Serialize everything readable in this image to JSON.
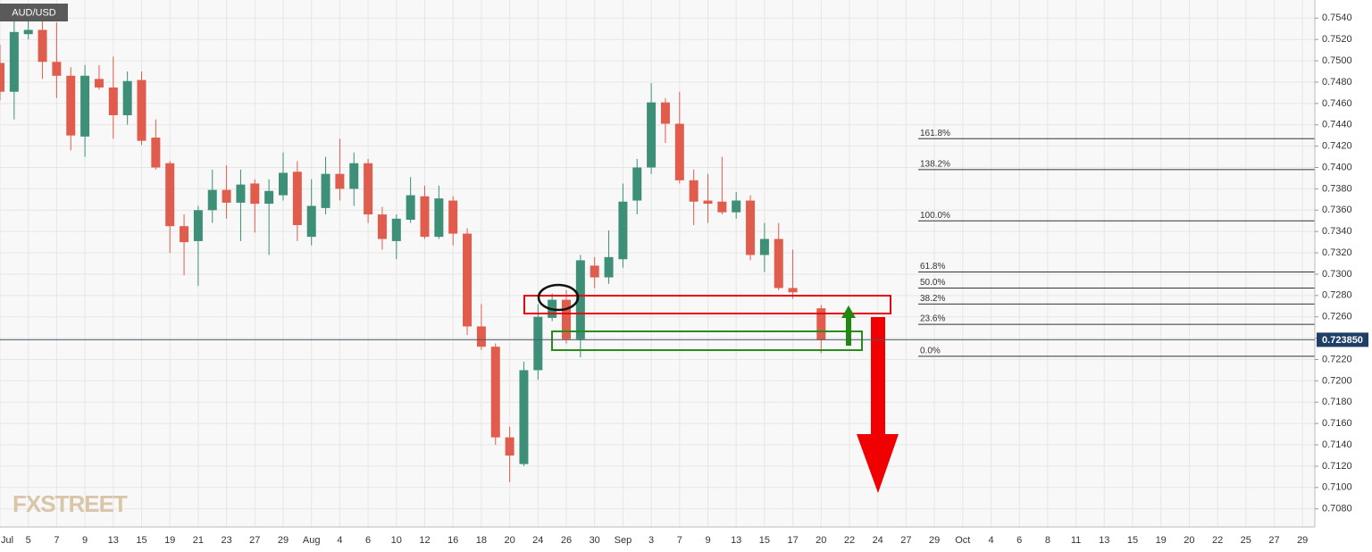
{
  "chart_data": {
    "type": "candlestick",
    "title": "AUD/USD",
    "watermark": "FXSTREET",
    "up_color": "#3d8f78",
    "down_color": "#e05c4c",
    "grid": true,
    "categories": [
      "Jul",
      null,
      "5",
      null,
      "7",
      null,
      "9",
      null,
      "13",
      null,
      "15",
      null,
      "19",
      null,
      "21",
      null,
      "23",
      null,
      "27",
      null,
      "29",
      null,
      "Aug",
      null,
      "4",
      null,
      "6",
      null,
      "10",
      null,
      "12",
      null,
      "16",
      null,
      "18",
      null,
      "20",
      null,
      "24",
      null,
      "26",
      null,
      "30",
      null,
      "Sep",
      null,
      "3",
      null,
      "7",
      null,
      "9",
      null,
      "13",
      null,
      "15",
      null,
      "17",
      null,
      "20",
      null,
      "22",
      null,
      "24",
      null,
      "27",
      null,
      "29",
      null,
      "Oct",
      null,
      "4",
      null,
      "6",
      null,
      "8",
      null,
      "11",
      null,
      "13",
      null,
      "15",
      null,
      "19",
      null,
      "20",
      null,
      "22",
      null,
      "25",
      null,
      "27",
      null,
      "29",
      null
    ],
    "open": [
      0.7498,
      0.7471,
      0.7525,
      0.7529,
      0.7499,
      0.7486,
      0.7429,
      0.7483,
      0.7475,
      0.7449,
      0.7482,
      0.7428,
      0.7404,
      0.7345,
      0.7331,
      0.736,
      0.7379,
      0.7367,
      0.7385,
      0.7366,
      0.7374,
      0.7396,
      0.7335,
      0.7362,
      0.7394,
      0.738,
      0.7404,
      0.7356,
      0.7331,
      0.7351,
      0.7373,
      0.7335,
      0.7369,
      0.7338,
      0.7251,
      0.7232,
      0.7147,
      0.7122,
      0.721,
      0.7259,
      0.7276,
      0.7239,
      0.7308,
      0.7297,
      0.7314,
      0.7369,
      0.74,
      0.7461,
      0.7441,
      0.7388,
      0.7369,
      0.7368,
      0.7358,
      0.7369,
      0.7318,
      0.7333,
      0.7287,
      null,
      0.7268,
      null,
      null,
      null,
      null,
      null,
      null,
      null,
      null,
      null,
      null,
      null,
      null,
      null,
      null,
      null,
      null,
      null,
      null,
      null,
      null,
      null,
      null,
      null,
      null,
      null,
      null,
      null,
      null,
      null,
      null,
      null,
      null,
      null,
      null,
      null
    ],
    "high": [
      0.7515,
      0.754,
      0.754,
      0.7545,
      0.7536,
      0.7494,
      0.7496,
      0.7496,
      0.7504,
      0.749,
      0.749,
      0.7445,
      0.7406,
      0.7356,
      0.7364,
      0.7398,
      0.7402,
      0.7398,
      0.7389,
      0.7389,
      0.7414,
      0.7406,
      0.7389,
      0.741,
      0.7427,
      0.7414,
      0.7408,
      0.7363,
      0.7356,
      0.7391,
      0.7383,
      0.7383,
      0.7373,
      0.7343,
      0.7272,
      0.7235,
      0.7157,
      0.7218,
      0.7272,
      0.7282,
      0.7285,
      0.7318,
      0.7316,
      0.7341,
      0.7385,
      0.7408,
      0.7479,
      0.7465,
      0.7471,
      0.7398,
      0.7394,
      0.741,
      0.7377,
      0.7374,
      0.7348,
      0.7348,
      0.7323,
      null,
      0.7271,
      null,
      null,
      null,
      null,
      null,
      null,
      null,
      null,
      null,
      null,
      null,
      null,
      null,
      null,
      null,
      null,
      null,
      null,
      null,
      null,
      null,
      null,
      null,
      null,
      null,
      null,
      null,
      null,
      null,
      null,
      null,
      null,
      null,
      null,
      null
    ],
    "low": [
      0.7463,
      0.7445,
      0.752,
      0.7483,
      0.7465,
      0.7416,
      0.741,
      0.7473,
      0.7427,
      0.744,
      0.7421,
      0.7398,
      0.732,
      0.7299,
      0.7289,
      0.7348,
      0.7352,
      0.7331,
      0.7339,
      0.7318,
      0.7369,
      0.7331,
      0.7327,
      0.7356,
      0.7369,
      0.7364,
      0.7348,
      0.7323,
      0.7314,
      0.7348,
      0.7333,
      0.7333,
      0.7327,
      0.7243,
      0.7229,
      0.714,
      0.7105,
      0.712,
      0.7201,
      0.7256,
      0.7235,
      0.7222,
      0.7287,
      0.7291,
      0.7306,
      0.7356,
      0.7394,
      0.7423,
      0.7385,
      0.7346,
      0.7348,
      0.7356,
      0.7352,
      0.7313,
      0.7302,
      0.7285,
      0.7277,
      null,
      0.7226,
      null,
      null,
      null,
      null,
      null,
      null,
      null,
      null,
      null,
      null,
      null,
      null,
      null,
      null,
      null,
      null,
      null,
      null,
      null,
      null,
      null,
      null,
      null,
      null,
      null,
      null,
      null,
      null,
      null,
      null,
      null,
      null,
      null,
      null,
      null
    ],
    "close": [
      0.7471,
      0.7527,
      0.7529,
      0.7499,
      0.7486,
      0.743,
      0.7486,
      0.7475,
      0.7449,
      0.7481,
      0.7425,
      0.74,
      0.7345,
      0.733,
      0.736,
      0.7379,
      0.7367,
      0.7384,
      0.7366,
      0.7378,
      0.7395,
      0.7346,
      0.7364,
      0.7394,
      0.738,
      0.7404,
      0.7356,
      0.7333,
      0.7352,
      0.7374,
      0.7335,
      0.7371,
      0.7338,
      0.7251,
      0.7232,
      0.7147,
      0.713,
      0.721,
      0.726,
      0.7276,
      0.7239,
      0.7313,
      0.7297,
      0.7316,
      0.7368,
      0.74,
      0.7461,
      0.7441,
      0.7388,
      0.7368,
      0.7366,
      0.7358,
      0.7369,
      0.7318,
      0.7333,
      0.7287,
      0.7283,
      null,
      0.72385,
      null,
      null,
      null,
      null,
      null,
      null,
      null,
      null,
      null,
      null,
      null,
      null,
      null,
      null,
      null,
      null,
      null,
      null,
      null,
      null,
      null,
      null,
      null,
      null,
      null,
      null,
      null,
      null,
      null,
      null,
      null,
      null,
      null,
      null,
      null
    ],
    "ylim": [
      0.7063,
      0.7557
    ],
    "yticks": [
      {
        "value": 0.708,
        "label": "0.7080"
      },
      {
        "value": 0.71,
        "label": "0.7100"
      },
      {
        "value": 0.712,
        "label": "0.7120"
      },
      {
        "value": 0.714,
        "label": "0.7140"
      },
      {
        "value": 0.716,
        "label": "0.7160"
      },
      {
        "value": 0.718,
        "label": "0.7180"
      },
      {
        "value": 0.72,
        "label": "0.7200"
      },
      {
        "value": 0.722,
        "label": "0.7220"
      },
      {
        "value": 0.724,
        "label": "0.7240"
      },
      {
        "value": 0.726,
        "label": "0.7260"
      },
      {
        "value": 0.728,
        "label": "0.7280"
      },
      {
        "value": 0.73,
        "label": "0.7300"
      },
      {
        "value": 0.732,
        "label": "0.7320"
      },
      {
        "value": 0.734,
        "label": "0.7340"
      },
      {
        "value": 0.736,
        "label": "0.7360"
      },
      {
        "value": 0.738,
        "label": "0.7380"
      },
      {
        "value": 0.74,
        "label": "0.7400"
      },
      {
        "value": 0.742,
        "label": "0.7420"
      },
      {
        "value": 0.744,
        "label": "0.7440"
      },
      {
        "value": 0.746,
        "label": "0.7460"
      },
      {
        "value": 0.748,
        "label": "0.7480"
      },
      {
        "value": 0.75,
        "label": "0.7500"
      },
      {
        "value": 0.752,
        "label": "0.7520"
      },
      {
        "value": 0.754,
        "label": "0.7540"
      }
    ],
    "last_price": {
      "value": 0.72385,
      "label": "0.723850"
    },
    "fib_levels": [
      {
        "label": "161.8%",
        "value": 0.7427
      },
      {
        "label": "138.2%",
        "value": 0.7398
      },
      {
        "label": "100.0%",
        "value": 0.735
      },
      {
        "label": "61.8%",
        "value": 0.7302
      },
      {
        "label": "50.0%",
        "value": 0.7287
      },
      {
        "label": "38.2%",
        "value": 0.7272
      },
      {
        "label": "23.6%",
        "value": 0.7253
      },
      {
        "label": "0.0%",
        "value": 0.7223
      }
    ]
  }
}
